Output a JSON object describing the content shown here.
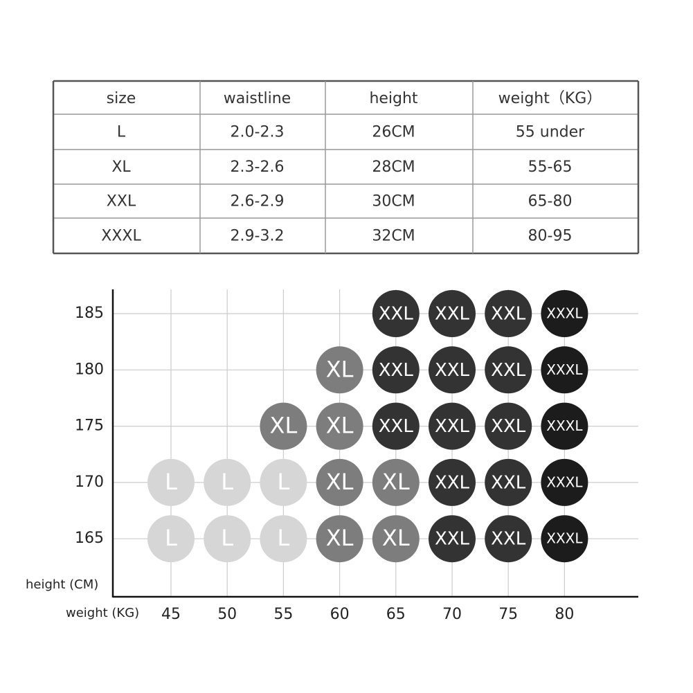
{
  "table": {
    "headers": [
      "size",
      "waistline",
      "height",
      "weight（KG）"
    ],
    "rows": [
      [
        "L",
        "2.0-2.3",
        "26CM",
        "55 under"
      ],
      [
        "XL",
        "2.3-2.6",
        "28CM",
        "55-65"
      ],
      [
        "XXL",
        "2.6-2.9",
        "30CM",
        "65-80"
      ],
      [
        "XXXL",
        "2.9-3.2",
        "32CM",
        "80-95"
      ]
    ]
  },
  "grid": {
    "y_label": "height (CM)",
    "x_label": "weight (KG)",
    "columns": [
      "45",
      "50",
      "55",
      "60",
      "65",
      "70",
      "75",
      "80"
    ],
    "rows": [
      {
        "label": "185",
        "cells": [
          null,
          null,
          null,
          null,
          "XXL",
          "XXL",
          "XXL",
          "XXXL"
        ]
      },
      {
        "label": "180",
        "cells": [
          null,
          null,
          null,
          "XL",
          "XXL",
          "XXL",
          "XXL",
          "XXXL"
        ]
      },
      {
        "label": "175",
        "cells": [
          null,
          null,
          "XL",
          "XL",
          "XXL",
          "XXL",
          "XXL",
          "XXXL"
        ]
      },
      {
        "label": "170",
        "cells": [
          "L",
          "L",
          "L",
          "XL",
          "XL",
          "XXL",
          "XXL",
          "XXXL"
        ]
      },
      {
        "label": "165",
        "cells": [
          "L",
          "L",
          "L",
          "XL",
          "XL",
          "XXL",
          "XXL",
          "XXXL"
        ]
      }
    ]
  }
}
